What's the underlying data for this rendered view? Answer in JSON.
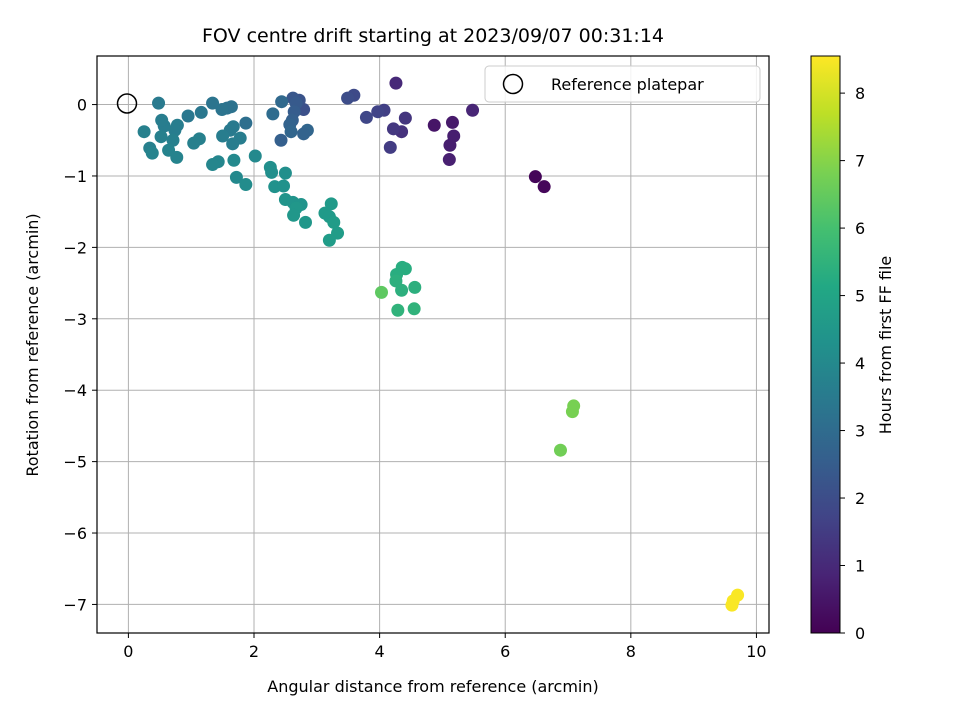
{
  "chart_data": {
    "type": "scatter",
    "title": "FOV centre drift starting at 2023/09/07 00:31:14",
    "xlabel": "Angular distance from reference (arcmin)",
    "ylabel": "Rotation from reference (arcmin)",
    "xlim": [
      -0.5,
      10.2
    ],
    "ylim": [
      -7.4,
      0.68
    ],
    "xticks": [
      "0",
      "2",
      "4",
      "6",
      "8",
      "10"
    ],
    "yticks": [
      "0",
      "−1",
      "−2",
      "−3",
      "−4",
      "−5",
      "−6",
      "−7"
    ],
    "grid": true,
    "legend": {
      "position": "top-right",
      "entries": [
        "Reference platepar"
      ]
    },
    "colorbar": {
      "label": "Hours from first FF file",
      "range": [
        0,
        8.55
      ],
      "ticks": [
        "0",
        "1",
        "2",
        "3",
        "4",
        "5",
        "6",
        "7",
        "8"
      ],
      "colormap": "viridis"
    },
    "reference": {
      "name": "Reference platepar",
      "x": 0,
      "y": 0
    },
    "series": [
      {
        "points": [
          {
            "x": 6.48,
            "y": -1.01,
            "c": 0.1
          },
          {
            "x": 6.62,
            "y": -1.15,
            "c": 0.15
          },
          {
            "x": 4.87,
            "y": -0.29,
            "c": 0.5
          },
          {
            "x": 5.16,
            "y": -0.25,
            "c": 0.6
          },
          {
            "x": 5.18,
            "y": -0.44,
            "c": 0.7
          },
          {
            "x": 5.12,
            "y": -0.57,
            "c": 0.7
          },
          {
            "x": 5.11,
            "y": -0.77,
            "c": 0.75
          },
          {
            "x": 5.48,
            "y": -0.08,
            "c": 0.9
          },
          {
            "x": 4.26,
            "y": 0.3,
            "c": 1.0
          },
          {
            "x": 4.35,
            "y": -0.38,
            "c": 1.2
          },
          {
            "x": 4.41,
            "y": -0.19,
            "c": 1.3
          },
          {
            "x": 4.22,
            "y": -0.34,
            "c": 1.4
          },
          {
            "x": 4.17,
            "y": -0.6,
            "c": 1.5
          },
          {
            "x": 4.07,
            "y": -0.08,
            "c": 1.6
          },
          {
            "x": 3.97,
            "y": -0.1,
            "c": 1.7
          },
          {
            "x": 3.79,
            "y": -0.18,
            "c": 1.8
          },
          {
            "x": 3.59,
            "y": 0.13,
            "c": 1.9
          },
          {
            "x": 3.49,
            "y": 0.09,
            "c": 2.0
          },
          {
            "x": 2.79,
            "y": -0.07,
            "c": 2.1
          },
          {
            "x": 2.72,
            "y": 0.06,
            "c": 2.2
          },
          {
            "x": 2.62,
            "y": 0.09,
            "c": 2.3
          },
          {
            "x": 2.67,
            "y": 0.02,
            "c": 2.4
          },
          {
            "x": 2.64,
            "y": -0.1,
            "c": 2.5
          },
          {
            "x": 2.61,
            "y": -0.22,
            "c": 2.6
          },
          {
            "x": 2.57,
            "y": -0.28,
            "c": 2.7
          },
          {
            "x": 2.59,
            "y": -0.38,
            "c": 2.8
          },
          {
            "x": 2.85,
            "y": -0.36,
            "c": 2.8
          },
          {
            "x": 2.79,
            "y": -0.41,
            "c": 2.7
          },
          {
            "x": 2.43,
            "y": -0.5,
            "c": 2.6
          },
          {
            "x": 2.44,
            "y": 0.04,
            "c": 2.9
          },
          {
            "x": 2.3,
            "y": -0.13,
            "c": 3.0
          },
          {
            "x": 1.87,
            "y": -0.26,
            "c": 3.1
          },
          {
            "x": 1.64,
            "y": -0.03,
            "c": 3.2
          },
          {
            "x": 1.57,
            "y": -0.05,
            "c": 3.2
          },
          {
            "x": 1.49,
            "y": -0.07,
            "c": 3.3
          },
          {
            "x": 1.34,
            "y": 0.02,
            "c": 3.3
          },
          {
            "x": 1.16,
            "y": -0.11,
            "c": 3.4
          },
          {
            "x": 0.95,
            "y": -0.16,
            "c": 3.4
          },
          {
            "x": 0.48,
            "y": 0.02,
            "c": 3.5
          },
          {
            "x": 1.67,
            "y": -0.31,
            "c": 3.5
          },
          {
            "x": 1.62,
            "y": -0.36,
            "c": 3.5
          },
          {
            "x": 1.78,
            "y": -0.47,
            "c": 3.6
          },
          {
            "x": 1.66,
            "y": -0.55,
            "c": 3.6
          },
          {
            "x": 1.5,
            "y": -0.44,
            "c": 3.6
          },
          {
            "x": 1.13,
            "y": -0.48,
            "c": 3.7
          },
          {
            "x": 1.04,
            "y": -0.54,
            "c": 3.7
          },
          {
            "x": 0.78,
            "y": -0.29,
            "c": 3.6
          },
          {
            "x": 0.74,
            "y": -0.36,
            "c": 3.6
          },
          {
            "x": 0.57,
            "y": -0.3,
            "c": 3.6
          },
          {
            "x": 0.53,
            "y": -0.22,
            "c": 3.6
          },
          {
            "x": 0.52,
            "y": -0.45,
            "c": 3.7
          },
          {
            "x": 0.71,
            "y": -0.5,
            "c": 3.7
          },
          {
            "x": 0.25,
            "y": -0.38,
            "c": 3.7
          },
          {
            "x": 0.34,
            "y": -0.61,
            "c": 3.7
          },
          {
            "x": 0.38,
            "y": -0.68,
            "c": 3.8
          },
          {
            "x": 0.64,
            "y": -0.64,
            "c": 3.8
          },
          {
            "x": 0.77,
            "y": -0.74,
            "c": 3.8
          },
          {
            "x": 1.43,
            "y": -0.8,
            "c": 3.9
          },
          {
            "x": 1.34,
            "y": -0.84,
            "c": 3.9
          },
          {
            "x": 1.68,
            "y": -0.78,
            "c": 4.0
          },
          {
            "x": 2.02,
            "y": -0.72,
            "c": 4.0
          },
          {
            "x": 1.72,
            "y": -1.02,
            "c": 4.0
          },
          {
            "x": 1.87,
            "y": -1.12,
            "c": 4.1
          },
          {
            "x": 2.26,
            "y": -0.88,
            "c": 4.2
          },
          {
            "x": 2.28,
            "y": -0.95,
            "c": 4.2
          },
          {
            "x": 2.5,
            "y": -0.96,
            "c": 4.2
          },
          {
            "x": 2.33,
            "y": -1.15,
            "c": 4.3
          },
          {
            "x": 2.47,
            "y": -1.14,
            "c": 4.3
          },
          {
            "x": 2.5,
            "y": -1.33,
            "c": 4.4
          },
          {
            "x": 2.62,
            "y": -1.37,
            "c": 4.4
          },
          {
            "x": 2.75,
            "y": -1.4,
            "c": 4.4
          },
          {
            "x": 2.67,
            "y": -1.45,
            "c": 4.5
          },
          {
            "x": 2.63,
            "y": -1.55,
            "c": 4.5
          },
          {
            "x": 2.82,
            "y": -1.65,
            "c": 4.5
          },
          {
            "x": 3.23,
            "y": -1.39,
            "c": 4.6
          },
          {
            "x": 3.13,
            "y": -1.52,
            "c": 4.6
          },
          {
            "x": 3.2,
            "y": -1.57,
            "c": 4.6
          },
          {
            "x": 3.27,
            "y": -1.65,
            "c": 4.7
          },
          {
            "x": 3.33,
            "y": -1.8,
            "c": 4.7
          },
          {
            "x": 3.2,
            "y": -1.9,
            "c": 4.7
          },
          {
            "x": 4.36,
            "y": -2.28,
            "c": 5.3
          },
          {
            "x": 4.41,
            "y": -2.3,
            "c": 5.3
          },
          {
            "x": 4.27,
            "y": -2.38,
            "c": 5.3
          },
          {
            "x": 4.26,
            "y": -2.47,
            "c": 5.4
          },
          {
            "x": 4.35,
            "y": -2.6,
            "c": 5.4
          },
          {
            "x": 4.56,
            "y": -2.56,
            "c": 5.4
          },
          {
            "x": 4.29,
            "y": -2.88,
            "c": 5.5
          },
          {
            "x": 4.55,
            "y": -2.86,
            "c": 5.5
          },
          {
            "x": 4.03,
            "y": -2.63,
            "c": 6.4
          },
          {
            "x": 7.09,
            "y": -4.22,
            "c": 6.8
          },
          {
            "x": 7.07,
            "y": -4.3,
            "c": 6.8
          },
          {
            "x": 6.88,
            "y": -4.84,
            "c": 6.7
          },
          {
            "x": 9.7,
            "y": -6.87,
            "c": 8.5
          },
          {
            "x": 9.63,
            "y": -6.95,
            "c": 8.5
          },
          {
            "x": 9.61,
            "y": -7.01,
            "c": 8.5
          }
        ]
      }
    ]
  }
}
